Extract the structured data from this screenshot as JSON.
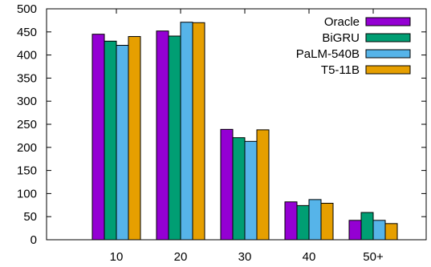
{
  "chart_data": {
    "type": "bar",
    "categories": [
      "10",
      "20",
      "30",
      "40",
      "50+"
    ],
    "series": [
      {
        "name": "Oracle",
        "color": "#9400d3",
        "values": [
          445,
          452,
          239,
          82,
          42
        ]
      },
      {
        "name": "BiGRU",
        "color": "#009e73",
        "values": [
          430,
          441,
          221,
          74,
          59
        ]
      },
      {
        "name": "PaLM-540B",
        "color": "#56b4e9",
        "values": [
          421,
          471,
          213,
          87,
          42
        ]
      },
      {
        "name": "T5-11B",
        "color": "#e69f00",
        "values": [
          440,
          470,
          238,
          79,
          35
        ]
      }
    ],
    "ylim": [
      0,
      500
    ],
    "yticks": [
      0,
      50,
      100,
      150,
      200,
      250,
      300,
      350,
      400,
      450,
      500
    ],
    "legend_position": "top-right",
    "grid": false,
    "title": "",
    "xlabel": "",
    "ylabel": ""
  }
}
